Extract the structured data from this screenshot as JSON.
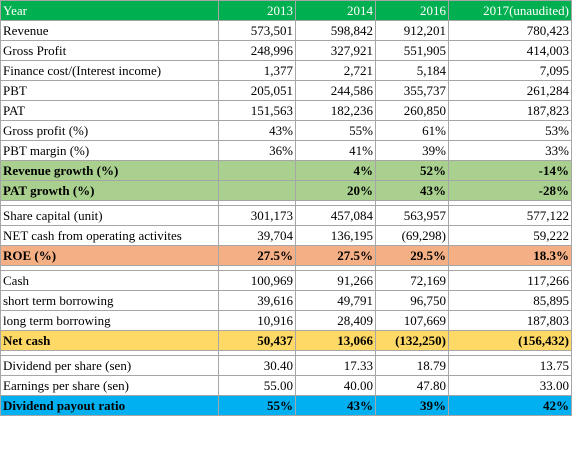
{
  "table": {
    "header": [
      "Year",
      "2013",
      "2014",
      "2016",
      "2017(unaudited)"
    ],
    "groups": [
      [
        [
          "Revenue",
          "573,501",
          "598,842",
          "912,201",
          "780,423"
        ],
        [
          "Gross Profit",
          "248,996",
          "327,921",
          "551,905",
          "414,003"
        ],
        [
          "Finance cost/(Interest income)",
          "1,377",
          "2,721",
          "5,184",
          "7,095"
        ],
        [
          "PBT",
          "205,051",
          "244,586",
          "355,737",
          "261,284"
        ],
        [
          "PAT",
          "151,563",
          "182,236",
          "260,850",
          "187,823"
        ],
        [
          "Gross profit (%)",
          "43%",
          "55%",
          "61%",
          "53%"
        ],
        [
          "PBT margin (%)",
          "36%",
          "41%",
          "39%",
          "33%"
        ],
        [
          "Revenue growth (%)",
          null,
          "4%",
          "52%",
          "-14%"
        ],
        [
          "PAT growth (%)",
          null,
          "20%",
          "43%",
          "-28%"
        ]
      ],
      [
        [
          "Share capital (unit)",
          "301,173",
          "457,084",
          "563,957",
          "577,122"
        ],
        [
          "NET cash from operating activites",
          "39,704",
          "136,195",
          "(69,298)",
          "59,222"
        ],
        [
          "ROE (%)",
          "27.5%",
          "27.5%",
          "29.5%",
          "18.3%"
        ]
      ],
      [
        [
          "Cash",
          "100,969",
          "91,266",
          "72,169",
          "117,266"
        ],
        [
          "short term borrowing",
          "39,616",
          "49,791",
          "96,750",
          "85,895"
        ],
        [
          "long term borrowing",
          "10,916",
          "28,409",
          "107,669",
          "187,803"
        ],
        [
          "Net cash",
          "50,437",
          "13,066",
          "(132,250)",
          "(156,432)"
        ]
      ],
      [
        [
          "Dividend per share (sen)",
          "30.40",
          "17.33",
          "18.79",
          "13.75"
        ],
        [
          "Earnings per share (sen)",
          "55.00",
          "40.00",
          "47.80",
          "33.00"
        ],
        [
          "Dividend payout ratio",
          "55%",
          "43%",
          "39%",
          "42%"
        ]
      ]
    ]
  }
}
